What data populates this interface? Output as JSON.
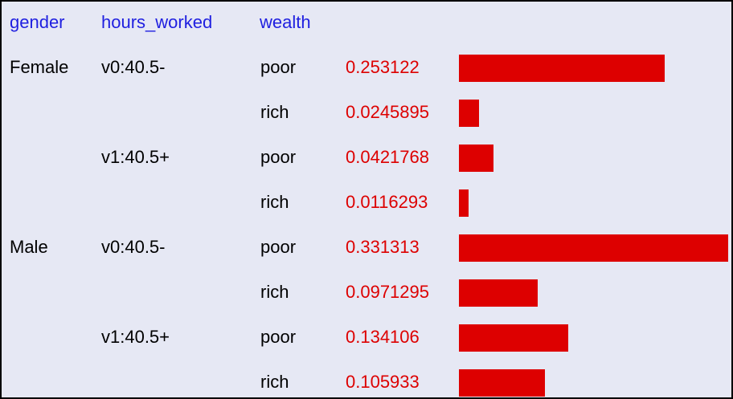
{
  "chart_data": {
    "type": "table",
    "columns": [
      "gender",
      "hours_worked",
      "wealth"
    ],
    "rows": [
      {
        "gender": "Female",
        "hours_worked": "v0:40.5-",
        "wealth": "poor",
        "value_label": "0.253122",
        "value": 0.253122
      },
      {
        "gender": "",
        "hours_worked": "",
        "wealth": "rich",
        "value_label": "0.0245895",
        "value": 0.0245895
      },
      {
        "gender": "",
        "hours_worked": "v1:40.5+",
        "wealth": "poor",
        "value_label": "0.0421768",
        "value": 0.0421768
      },
      {
        "gender": "",
        "hours_worked": "",
        "wealth": "rich",
        "value_label": "0.0116293",
        "value": 0.0116293
      },
      {
        "gender": "Male",
        "hours_worked": "v0:40.5-",
        "wealth": "poor",
        "value_label": "0.331313",
        "value": 0.331313
      },
      {
        "gender": "",
        "hours_worked": "",
        "wealth": "rich",
        "value_label": "0.0971295",
        "value": 0.0971295
      },
      {
        "gender": "",
        "hours_worked": "v1:40.5+",
        "wealth": "poor",
        "value_label": "0.134106",
        "value": 0.134106
      },
      {
        "gender": "",
        "hours_worked": "",
        "wealth": "rich",
        "value_label": "0.105933",
        "value": 0.105933
      }
    ],
    "colors": {
      "background": "#e6e8f4",
      "header_text": "#1f1fe0",
      "value_text": "#dd0000",
      "bar": "#dd0000",
      "label_text": "#000000",
      "border": "#000000"
    }
  }
}
